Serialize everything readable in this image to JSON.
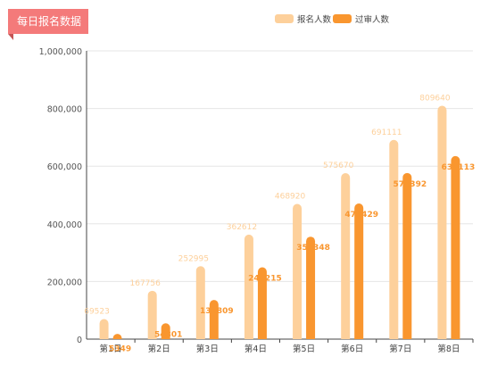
{
  "title": "每日报名数据",
  "legend": [
    {
      "name": "报名人数",
      "color": "#fdd09b"
    },
    {
      "name": "过审人数",
      "color": "#f9962f"
    }
  ],
  "chart_data": {
    "type": "bar",
    "categories": [
      "第1日",
      "第2日",
      "第3日",
      "第4日",
      "第5日",
      "第6日",
      "第7日",
      "第8日"
    ],
    "series": [
      {
        "name": "报名人数",
        "values": [
          69523,
          167756,
          252995,
          362612,
          468920,
          575670,
          691111,
          809640
        ],
        "color": "#fdd09b"
      },
      {
        "name": "过审人数",
        "values": [
          5349,
          54801,
          135809,
          249215,
          355348,
          470429,
          576392,
          635113
        ],
        "color": "#f9962f"
      }
    ],
    "ylim": [
      0,
      1000000
    ],
    "yticks": [
      0,
      200000,
      400000,
      600000,
      800000,
      1000000
    ],
    "ytick_labels": [
      "0",
      "200,000",
      "400,000",
      "600,000",
      "800,000",
      "1,000,000"
    ],
    "grid": true,
    "legend_position": "top-right"
  }
}
